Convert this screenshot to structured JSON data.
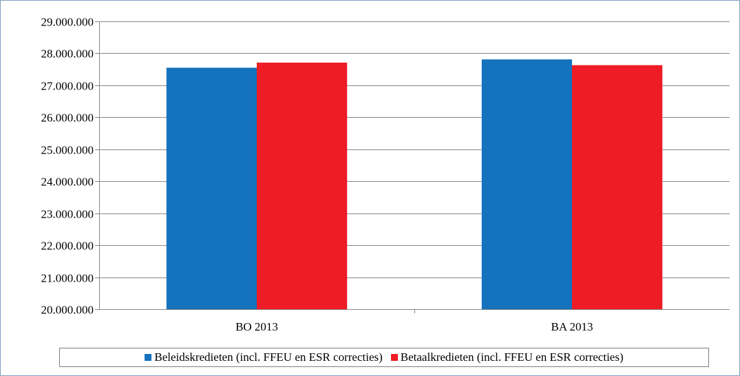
{
  "chart_data": {
    "type": "bar",
    "categories": [
      "BO 2013",
      "BA 2013"
    ],
    "series": [
      {
        "name": "Beleidskredieten (incl. FFEU en ESR correcties)",
        "color": "#1572bd",
        "values": [
          27550000,
          27810000
        ]
      },
      {
        "name": "Betaalkredieten (incl. FFEU en ESR correcties)",
        "color": "#ee1c25",
        "values": [
          27710000,
          27630000
        ]
      }
    ],
    "ylim": [
      20000000,
      29000000
    ],
    "yticks": [
      "20.000.000",
      "21.000.000",
      "22.000.000",
      "23.000.000",
      "24.000.000",
      "25.000.000",
      "26.000.000",
      "27.000.000",
      "28.000.000",
      "29.000.000"
    ],
    "grid": true,
    "legend_position": "bottom",
    "title": "",
    "xlabel": "",
    "ylabel": ""
  }
}
